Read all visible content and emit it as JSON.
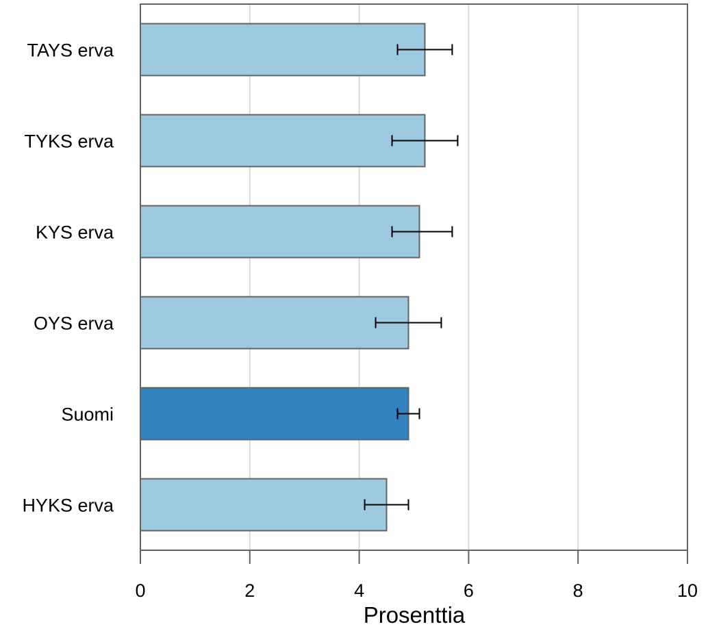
{
  "chart_data": {
    "type": "bar",
    "orientation": "horizontal",
    "categories": [
      "TAYS erva",
      "TYKS erva",
      "KYS erva",
      "OYS erva",
      "Suomi",
      "HYKS erva"
    ],
    "values": [
      5.2,
      5.2,
      5.1,
      4.9,
      4.9,
      4.5
    ],
    "error_low": [
      4.7,
      4.6,
      4.6,
      4.3,
      4.7,
      4.1
    ],
    "error_high": [
      5.7,
      5.8,
      5.7,
      5.5,
      5.1,
      4.9
    ],
    "highlight_category": "Suomi",
    "xlabel": "Prosenttia",
    "ylabel": "",
    "xlim": [
      0,
      10
    ],
    "xticks": [
      0,
      2,
      4,
      6,
      8,
      10
    ],
    "grid": true,
    "legend": false,
    "colors": {
      "bar": "#9ecae1",
      "bar_highlight": "#3182bd",
      "bar_stroke": "#636363",
      "grid": "#d9d9d9",
      "axis": "#636363",
      "error_bar": "#000000"
    }
  }
}
